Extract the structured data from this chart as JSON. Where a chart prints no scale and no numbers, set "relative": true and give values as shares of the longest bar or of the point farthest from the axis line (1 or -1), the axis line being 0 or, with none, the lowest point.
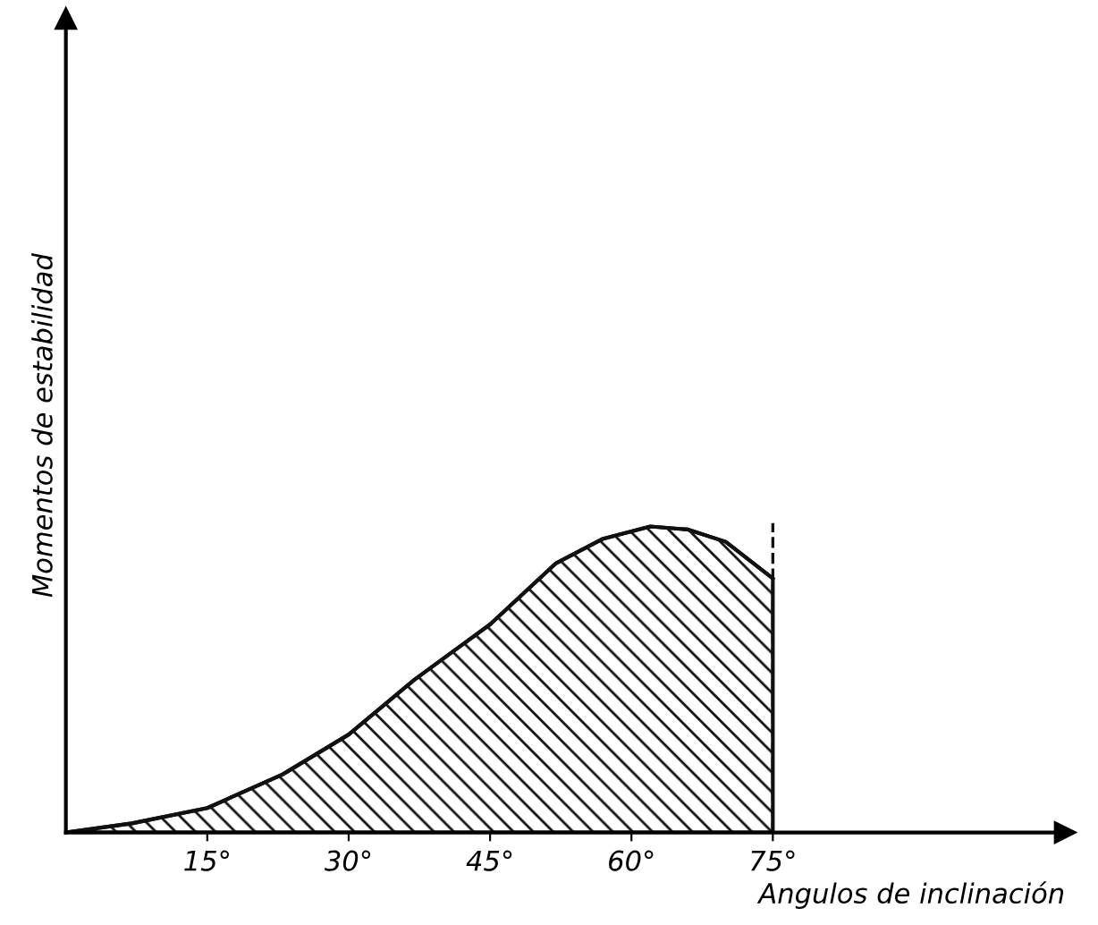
{
  "chart_data": {
    "type": "area",
    "relative": true,
    "xlabel": "Angulos de inclinación",
    "ylabel": "Momentos de estabilidad",
    "x": [
      0,
      7,
      15,
      23,
      30,
      37,
      45,
      52,
      57,
      62,
      66,
      70,
      75
    ],
    "series": [
      {
        "color": "#111111",
        "values": [
          0,
          0.03,
          0.08,
          0.19,
          0.32,
          0.5,
          0.68,
          0.88,
          0.96,
          1,
          0.99,
          0.95,
          0.83
        ]
      }
    ],
    "xlim": [
      0,
      106
    ],
    "xticks": [
      {
        "value": 15,
        "label": "15°"
      },
      {
        "value": 30,
        "label": "30°"
      },
      {
        "value": 45,
        "label": "45°"
      },
      {
        "value": 60,
        "label": "60°"
      },
      {
        "value": 75,
        "label": "75°"
      }
    ],
    "ref_lines": [
      {
        "axis": "x",
        "value": 75,
        "label": null,
        "line_style": "dashed"
      }
    ],
    "grid": false,
    "legend": false
  }
}
